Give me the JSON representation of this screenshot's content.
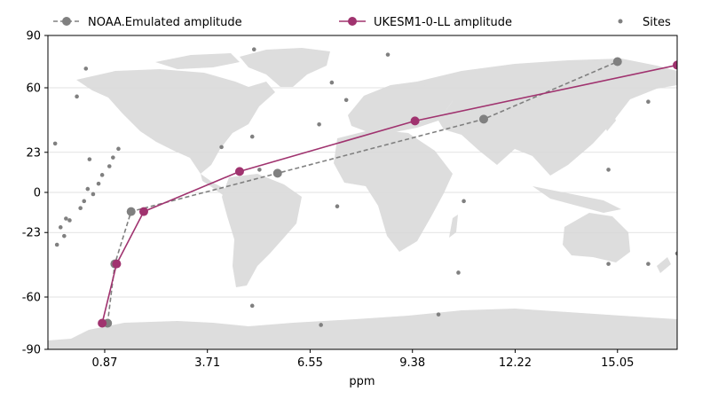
{
  "chart_data": {
    "type": "line",
    "xlabel": "ppm",
    "x_ticks": [
      "0.87",
      "3.71",
      "6.55",
      "9.38",
      "12.22",
      "15.05"
    ],
    "x_tick_values": [
      0.87,
      3.71,
      6.55,
      9.38,
      12.22,
      15.05
    ],
    "y_ticks": [
      "90",
      "60",
      "23",
      "0",
      "-23",
      "-60",
      "-90"
    ],
    "y_tick_values": [
      90,
      60,
      23,
      0,
      -23,
      -60,
      -90
    ],
    "xlim": [
      -0.7,
      16.7
    ],
    "ylim": [
      -90,
      90
    ],
    "grid": "horizontal",
    "legend_position": "top",
    "background": "world map",
    "series": [
      {
        "name": "NOAA.Emulated amplitude",
        "color": "#808080",
        "style": "dashed",
        "marker": "circle",
        "points": [
          {
            "x": 0.95,
            "y": -75
          },
          {
            "x": 1.15,
            "y": -41
          },
          {
            "x": 1.6,
            "y": -11
          },
          {
            "x": 5.65,
            "y": 11
          },
          {
            "x": 11.35,
            "y": 42
          },
          {
            "x": 15.05,
            "y": 75
          }
        ]
      },
      {
        "name": "UKESM1-0-LL amplitude",
        "color": "#A0336F",
        "style": "solid",
        "marker": "circle",
        "points": [
          {
            "x": 0.8,
            "y": -75
          },
          {
            "x": 1.2,
            "y": -41
          },
          {
            "x": 1.95,
            "y": -11
          },
          {
            "x": 4.6,
            "y": 12
          },
          {
            "x": 9.45,
            "y": 41
          },
          {
            "x": 16.7,
            "y": 73
          }
        ]
      },
      {
        "name": "Sites",
        "color": "#808080",
        "type": "scatter",
        "points": [
          {
            "x": -0.5,
            "y": 28
          },
          {
            "x": -0.45,
            "y": -30
          },
          {
            "x": -0.35,
            "y": -20
          },
          {
            "x": -0.2,
            "y": -15
          },
          {
            "x": -0.25,
            "y": -25
          },
          {
            "x": -0.1,
            "y": -16
          },
          {
            "x": 0.1,
            "y": 55
          },
          {
            "x": 0.35,
            "y": 71
          },
          {
            "x": 0.45,
            "y": 19
          },
          {
            "x": 0.3,
            "y": -5
          },
          {
            "x": 0.4,
            "y": 2
          },
          {
            "x": 0.2,
            "y": -9
          },
          {
            "x": 0.55,
            "y": -1
          },
          {
            "x": 0.7,
            "y": 5
          },
          {
            "x": 0.8,
            "y": 10
          },
          {
            "x": 1.0,
            "y": 15
          },
          {
            "x": 1.1,
            "y": 20
          },
          {
            "x": 1.25,
            "y": 25
          },
          {
            "x": 4.1,
            "y": 26
          },
          {
            "x": 4.95,
            "y": 32
          },
          {
            "x": 5.0,
            "y": 82
          },
          {
            "x": 5.15,
            "y": 13
          },
          {
            "x": 4.95,
            "y": -65
          },
          {
            "x": 6.8,
            "y": 39
          },
          {
            "x": 7.15,
            "y": 63
          },
          {
            "x": 7.55,
            "y": 53
          },
          {
            "x": 7.3,
            "y": -8
          },
          {
            "x": 6.85,
            "y": -76
          },
          {
            "x": 8.7,
            "y": 79
          },
          {
            "x": 10.65,
            "y": -46
          },
          {
            "x": 10.8,
            "y": -5
          },
          {
            "x": 10.1,
            "y": -70
          },
          {
            "x": 14.8,
            "y": 13
          },
          {
            "x": 14.8,
            "y": -41
          },
          {
            "x": 15.9,
            "y": 52
          },
          {
            "x": 15.9,
            "y": -41
          },
          {
            "x": 16.7,
            "y": -35
          }
        ]
      }
    ]
  }
}
